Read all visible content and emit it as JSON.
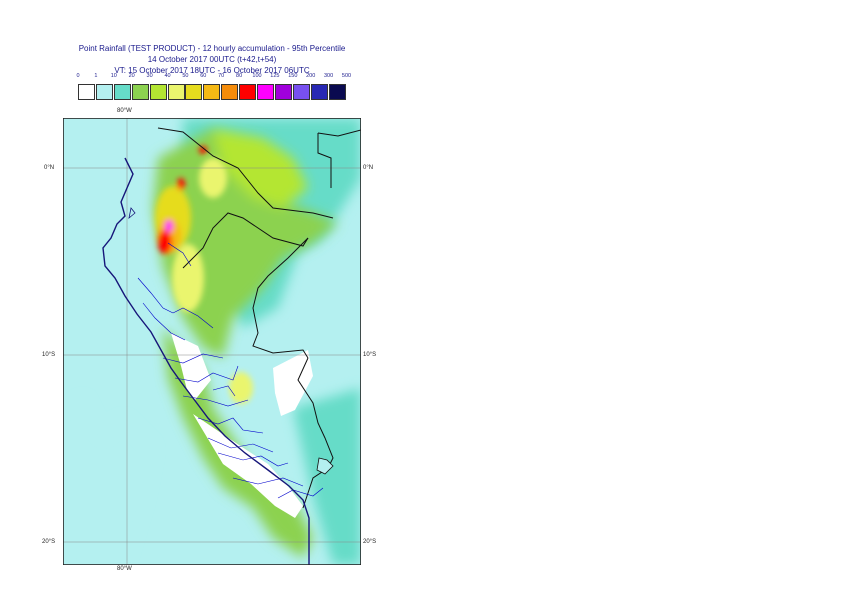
{
  "title": {
    "line1": "Point Rainfall (TEST PRODUCT) - 12 hourly accumulation - 95th Percentile",
    "line2": "14 October 2017 00UTC (t+42,t+54)",
    "line3": "VT: 15 October 2017 18UTC - 16 October 2017 06UTC"
  },
  "legend": {
    "labels": [
      "0",
      "1",
      "10",
      "20",
      "30",
      "40",
      "50",
      "60",
      "70",
      "80",
      "100",
      "125",
      "150",
      "200",
      "300",
      "500"
    ],
    "colors": [
      "#ffffff",
      "#b4f0f0",
      "#66dcc8",
      "#8cd250",
      "#b4e632",
      "#eaf56e",
      "#e6dc1e",
      "#f5b914",
      "#f58c0a",
      "#ff0000",
      "#ff00ff",
      "#a000dc",
      "#7850f0",
      "#2828b4",
      "#0a0a50"
    ]
  },
  "axes": {
    "lon_top": "80°W",
    "lon_bottom": "80°W",
    "lat_right": [
      "0°N",
      "10°S",
      "20°S"
    ],
    "lat_left": [
      "0°N",
      "10°S",
      "20°S"
    ]
  },
  "colors": {
    "coast": "#16167a",
    "border": "#111111",
    "admin": "#0000cc",
    "grid": "#888888"
  }
}
